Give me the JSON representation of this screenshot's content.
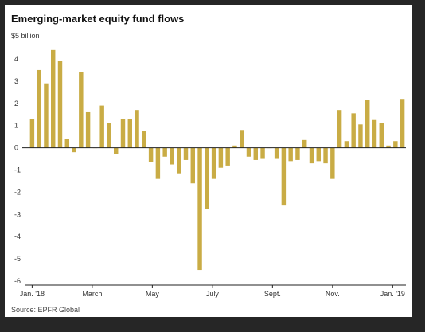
{
  "chart_data": {
    "type": "bar",
    "title": "Emerging-market equity fund flows",
    "ylabel": "$5 billion",
    "source": "Source: EPFR Global",
    "ylim": [
      -6,
      5
    ],
    "yticks": [
      4,
      3,
      2,
      1,
      0,
      -1,
      -2,
      -3,
      -4,
      -5,
      -6
    ],
    "xtick_labels": [
      "Jan. '18",
      "March",
      "May",
      "July",
      "Sept.",
      "Nov.",
      "Jan. '19"
    ],
    "grid": false,
    "bar_color": "#C9AC45",
    "values": [
      1.3,
      3.5,
      2.9,
      4.4,
      3.9,
      0.4,
      -0.2,
      3.4,
      1.6,
      0,
      1.9,
      1.1,
      -0.3,
      1.3,
      1.3,
      1.7,
      0.75,
      -0.65,
      -1.4,
      -0.4,
      -0.75,
      -1.15,
      -0.55,
      -1.6,
      -5.5,
      -2.75,
      -1.4,
      -0.9,
      -0.8,
      0.1,
      0.8,
      -0.4,
      -0.55,
      -0.5,
      0,
      -0.5,
      -2.6,
      -0.6,
      -0.55,
      0.35,
      -0.7,
      -0.6,
      -0.7,
      -1.4,
      1.7,
      0.3,
      1.55,
      1.05,
      2.15,
      1.25,
      1.1,
      0.1,
      0.3,
      2.2
    ]
  }
}
